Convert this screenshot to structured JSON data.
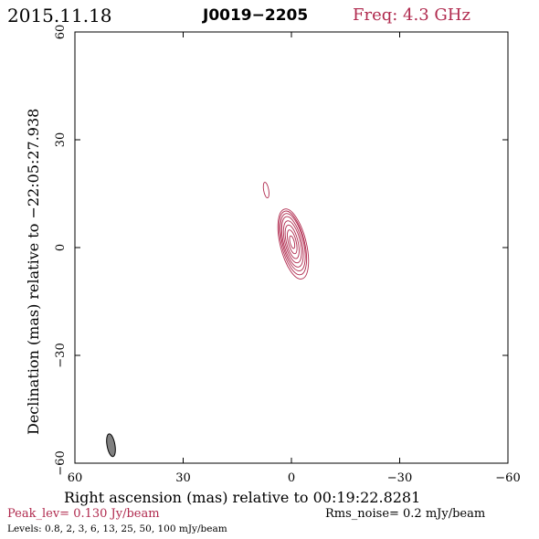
{
  "header": {
    "date": "2015.11.18",
    "source": "J0019−2205",
    "freq": "Freq: 4.3 GHz"
  },
  "footer": {
    "peak": "Peak_lev=  0.130 Jy/beam",
    "rms": "Rms_noise=  0.2 mJy/beam",
    "levels": "Levels: 0.8,  2,  3,  6,  13,  25,  50, 100 mJy/beam"
  },
  "colors": {
    "contour": "#b02a4e",
    "peak_text": "#b02a4e",
    "freq_text": "#b02a4e",
    "beam_fill": "#808080",
    "axes": "#000000"
  },
  "chart_data": {
    "type": "contour",
    "xlabel": "Right ascension (mas) relative to 00:19:22.8281",
    "ylabel": "Declination (mas) relative to −22:05:27.938",
    "xlim": [
      60,
      -60
    ],
    "ylim": [
      -60,
      60
    ],
    "x_ticks": [
      60,
      30,
      0,
      -30,
      -60
    ],
    "y_ticks": [
      -60,
      -30,
      0,
      30,
      60
    ],
    "x_tick_labels": [
      "60",
      "30",
      "0",
      "−30",
      "−60"
    ],
    "y_tick_labels": [
      "−60",
      "−30",
      "0",
      "30",
      "60"
    ],
    "levels_mJy": [
      0.8,
      2,
      3,
      6,
      13,
      25,
      50,
      100
    ],
    "peak_Jy_per_beam": 0.13,
    "rms_noise_mJy_per_beam": 0.2,
    "components": [
      {
        "name": "core",
        "center_x_mas": -0.5,
        "center_y_mas": 1.0,
        "pa_deg": -14,
        "contours": [
          {
            "a": 10.0,
            "b": 3.6,
            "dx": 0.0,
            "dy": 0.0
          },
          {
            "a": 9.1,
            "b": 3.2,
            "dx": 0.1,
            "dy": 0.3
          },
          {
            "a": 8.2,
            "b": 2.9,
            "dx": 0.1,
            "dy": 0.5
          },
          {
            "a": 7.2,
            "b": 2.5,
            "dx": 0.2,
            "dy": 0.6
          },
          {
            "a": 6.0,
            "b": 2.1,
            "dx": 0.2,
            "dy": 0.6
          },
          {
            "a": 4.8,
            "b": 1.6,
            "dx": 0.3,
            "dy": 0.6
          },
          {
            "a": 3.4,
            "b": 1.1,
            "dx": 0.3,
            "dy": 0.6
          },
          {
            "a": 1.8,
            "b": 0.6,
            "dx": 0.3,
            "dy": 0.5
          }
        ]
      },
      {
        "name": "jet_knot",
        "center_x_mas": 7.0,
        "center_y_mas": 16.0,
        "pa_deg": -10,
        "contours": [
          {
            "a": 2.2,
            "b": 0.7,
            "dx": 0.0,
            "dy": 0.0
          }
        ]
      }
    ],
    "beam": {
      "x_mas": 50.0,
      "y_mas": -55.0,
      "major_mas": 3.2,
      "minor_mas": 1.1,
      "pa_deg": -10
    }
  }
}
